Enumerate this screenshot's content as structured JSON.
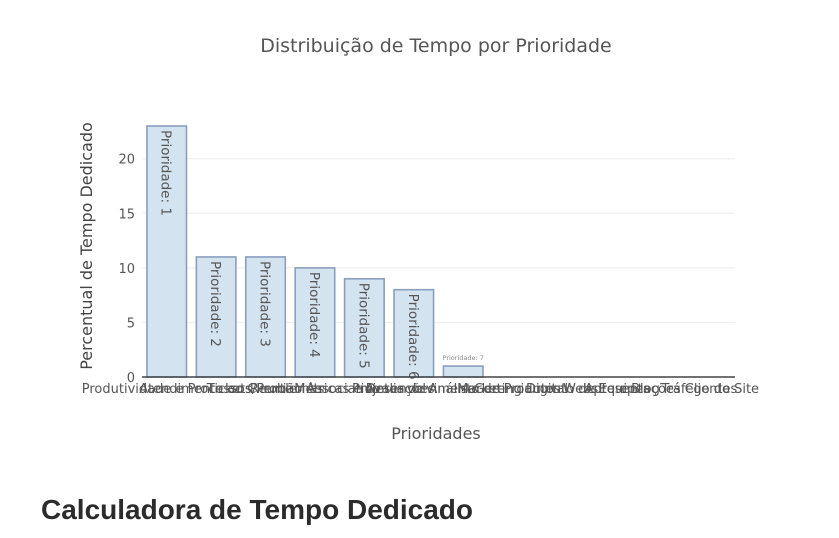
{
  "chart_data": {
    "type": "bar",
    "title": "Distribuição de Tempo por Prioridade",
    "xlabel": "Prioridades",
    "ylabel": "Percentual de Tempo Dedicado",
    "ylim": [
      0,
      23
    ],
    "yticks": [
      0,
      5,
      10,
      15,
      20
    ],
    "grid": true,
    "categories": [
      "Produtividade e Processos",
      "Atendimento ao Cliente",
      "Tickets/Problemas",
      "Reunião Associativo",
      "Métricas e Avaliações",
      "Projetos de Análise",
      "Desenvolvimento de Produtos",
      "Marketing Digital",
      "Gerenciamento de Equipes",
      "Website e Blog",
      "Apresentações Clientes",
      "Tráfego do Site"
    ],
    "values": [
      23,
      11,
      11,
      10,
      9,
      8,
      1,
      0,
      0,
      0,
      0,
      0
    ],
    "labels": [
      "Prioridade: 1",
      "Prioridade: 2",
      "Prioridade: 3",
      "Prioridade: 4",
      "Prioridade: 5",
      "Prioridade: 6",
      "Prioridade: 7",
      "",
      "",
      "",
      "",
      ""
    ],
    "colors": {
      "bar_fill": "#d3e3ef",
      "bar_stroke": "#8a9fbd",
      "text": "#555555",
      "grid": "#eeeeee",
      "axis": "#444444"
    }
  },
  "page": {
    "heading": "Calculadora de Tempo Dedicado"
  }
}
